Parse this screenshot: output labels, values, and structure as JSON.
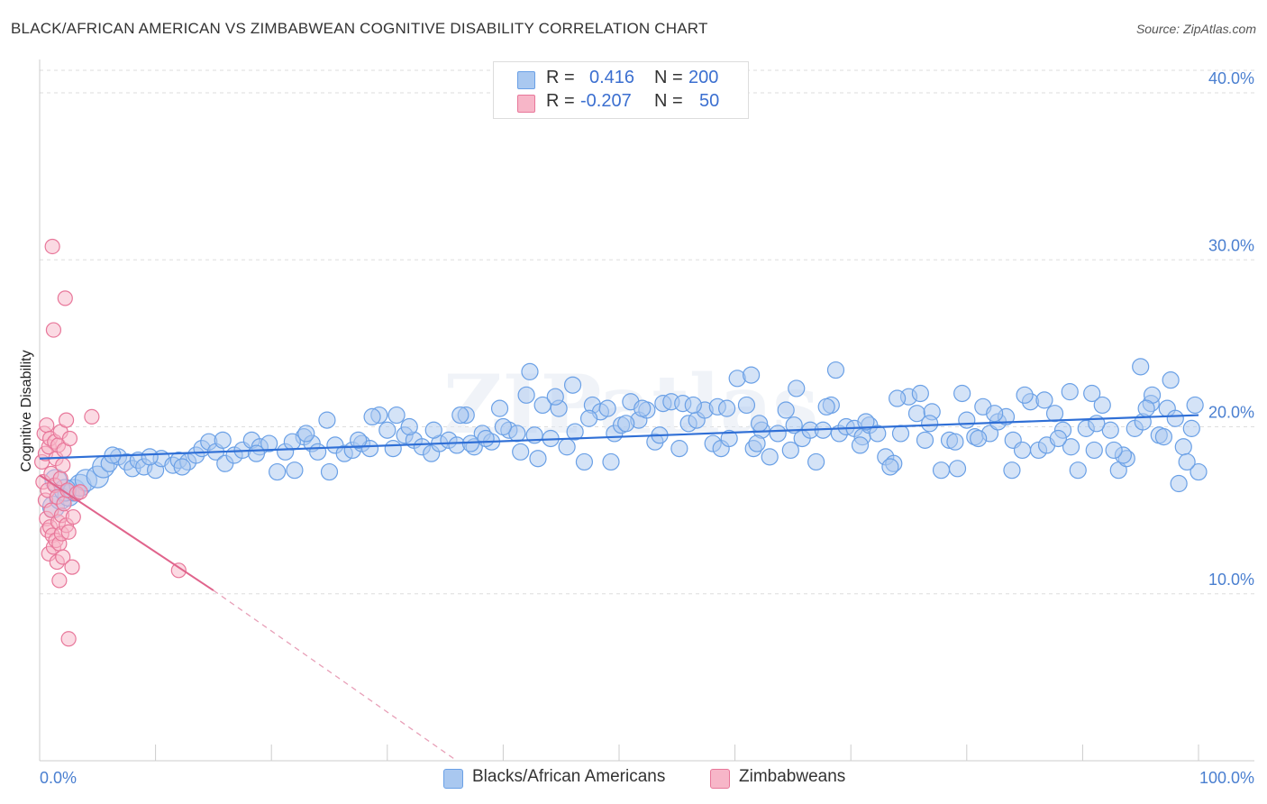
{
  "header": {
    "title": "BLACK/AFRICAN AMERICAN VS ZIMBABWEAN COGNITIVE DISABILITY CORRELATION CHART",
    "source": "Source: ZipAtlas.com"
  },
  "legend": {
    "rows": [
      {
        "r_label": "R =",
        "r_value": "0.416",
        "n_label": "N =",
        "n_value": "200",
        "color": "#a9c8f0"
      },
      {
        "r_label": "R =",
        "r_value": "-0.207",
        "n_label": "N =",
        "n_value": "50",
        "color": "#f7b6c8"
      }
    ]
  },
  "bottom_legend": [
    {
      "label": "Blacks/African Americans",
      "color": "#a9c8f0"
    },
    {
      "label": "Zimbabweans",
      "color": "#f7b6c8"
    }
  ],
  "chart_data": {
    "type": "scatter",
    "title": "BLACK/AFRICAN AMERICAN VS ZIMBABWEAN COGNITIVE DISABILITY CORRELATION CHART",
    "xlabel": "",
    "ylabel": "Cognitive Disability",
    "xlim": [
      0,
      100
    ],
    "ylim": [
      0,
      42
    ],
    "x_tick_labels": {
      "left": "0.0%",
      "right": "100.0%"
    },
    "y_ticks": [
      10,
      20,
      30,
      40
    ],
    "y_tick_labels": [
      "10.0%",
      "20.0%",
      "30.0%",
      "40.0%"
    ],
    "watermark": "ZIPatlas",
    "series": [
      {
        "name": "Blacks/African Americans",
        "color": "#6aa0e6",
        "fill": "#a9c8f0",
        "trend": {
          "x0": 0,
          "y0": 18.1,
          "x1": 100,
          "y1": 20.7
        },
        "points": [
          [
            1.2,
            15.2
          ],
          [
            1.8,
            15.7
          ],
          [
            2.5,
            15.9
          ],
          [
            3.0,
            16.2
          ],
          [
            3.5,
            16.5
          ],
          [
            4.0,
            16.8
          ],
          [
            5.0,
            17.0
          ],
          [
            5.5,
            17.6
          ],
          [
            6.0,
            17.8
          ],
          [
            6.8,
            18.2
          ],
          [
            7.5,
            17.9
          ],
          [
            8.0,
            17.5
          ],
          [
            8.5,
            18.0
          ],
          [
            9.0,
            17.6
          ],
          [
            10.0,
            17.4
          ],
          [
            10.5,
            18.1
          ],
          [
            11.5,
            17.7
          ],
          [
            12.0,
            18.0
          ],
          [
            12.8,
            17.9
          ],
          [
            13.5,
            18.3
          ],
          [
            14.0,
            18.7
          ],
          [
            14.6,
            19.1
          ],
          [
            15.2,
            18.5
          ],
          [
            16.0,
            17.8
          ],
          [
            16.8,
            18.3
          ],
          [
            17.5,
            18.6
          ],
          [
            18.3,
            19.2
          ],
          [
            19.0,
            18.8
          ],
          [
            19.8,
            19.0
          ],
          [
            20.5,
            17.3
          ],
          [
            21.2,
            18.5
          ],
          [
            22.0,
            17.4
          ],
          [
            22.8,
            19.4
          ],
          [
            23.5,
            19.0
          ],
          [
            24.0,
            18.5
          ],
          [
            24.8,
            20.4
          ],
          [
            25.5,
            18.9
          ],
          [
            26.3,
            18.4
          ],
          [
            27.0,
            18.6
          ],
          [
            27.8,
            19.0
          ],
          [
            28.5,
            18.7
          ],
          [
            29.3,
            20.7
          ],
          [
            30.0,
            19.8
          ],
          [
            30.8,
            20.7
          ],
          [
            31.5,
            19.5
          ],
          [
            32.3,
            19.2
          ],
          [
            33.0,
            18.8
          ],
          [
            33.8,
            18.4
          ],
          [
            34.5,
            19.0
          ],
          [
            35.3,
            19.2
          ],
          [
            36.0,
            18.9
          ],
          [
            36.8,
            20.7
          ],
          [
            37.5,
            18.8
          ],
          [
            38.2,
            19.6
          ],
          [
            39.0,
            19.1
          ],
          [
            39.7,
            21.1
          ],
          [
            40.5,
            19.8
          ],
          [
            41.2,
            19.6
          ],
          [
            42.0,
            21.9
          ],
          [
            42.7,
            19.5
          ],
          [
            43.4,
            21.3
          ],
          [
            44.1,
            19.3
          ],
          [
            44.8,
            21.1
          ],
          [
            45.5,
            18.8
          ],
          [
            46.2,
            19.7
          ],
          [
            47.0,
            17.9
          ],
          [
            47.7,
            21.3
          ],
          [
            48.4,
            20.9
          ],
          [
            49.0,
            21.1
          ],
          [
            49.6,
            19.6
          ],
          [
            50.2,
            20.1
          ],
          [
            51.0,
            21.5
          ],
          [
            51.7,
            20.4
          ],
          [
            52.4,
            21.0
          ],
          [
            53.1,
            19.1
          ],
          [
            53.8,
            21.4
          ],
          [
            54.5,
            21.5
          ],
          [
            55.2,
            18.7
          ],
          [
            56.0,
            20.2
          ],
          [
            56.7,
            20.4
          ],
          [
            57.4,
            21.0
          ],
          [
            58.1,
            19.0
          ],
          [
            58.8,
            18.7
          ],
          [
            59.5,
            19.3
          ],
          [
            60.2,
            22.9
          ],
          [
            61.0,
            21.3
          ],
          [
            61.6,
            18.7
          ],
          [
            62.3,
            19.8
          ],
          [
            63.0,
            18.2
          ],
          [
            63.7,
            19.6
          ],
          [
            64.4,
            21.0
          ],
          [
            65.1,
            20.1
          ],
          [
            65.8,
            19.3
          ],
          [
            66.5,
            19.8
          ],
          [
            67.0,
            17.9
          ],
          [
            67.6,
            19.8
          ],
          [
            68.3,
            21.3
          ],
          [
            69.0,
            19.6
          ],
          [
            69.6,
            20.0
          ],
          [
            70.3,
            19.9
          ],
          [
            71.0,
            19.4
          ],
          [
            71.6,
            20.1
          ],
          [
            72.3,
            19.6
          ],
          [
            73.0,
            18.2
          ],
          [
            73.7,
            17.8
          ],
          [
            74.3,
            19.6
          ],
          [
            75.0,
            21.8
          ],
          [
            75.7,
            20.8
          ],
          [
            76.4,
            19.2
          ],
          [
            77.0,
            20.9
          ],
          [
            77.8,
            17.4
          ],
          [
            78.5,
            19.2
          ],
          [
            79.2,
            17.5
          ],
          [
            80.0,
            20.4
          ],
          [
            80.7,
            19.4
          ],
          [
            81.4,
            21.2
          ],
          [
            82.0,
            19.6
          ],
          [
            82.7,
            20.3
          ],
          [
            83.4,
            20.6
          ],
          [
            84.0,
            19.2
          ],
          [
            84.8,
            18.6
          ],
          [
            85.5,
            21.5
          ],
          [
            86.2,
            18.6
          ],
          [
            86.9,
            18.9
          ],
          [
            87.6,
            20.8
          ],
          [
            88.3,
            19.8
          ],
          [
            89.0,
            18.8
          ],
          [
            89.6,
            17.4
          ],
          [
            90.3,
            19.9
          ],
          [
            91.0,
            18.6
          ],
          [
            91.7,
            21.3
          ],
          [
            92.4,
            19.8
          ],
          [
            93.1,
            17.4
          ],
          [
            93.8,
            18.1
          ],
          [
            94.5,
            19.9
          ],
          [
            95.2,
            20.3
          ],
          [
            95.9,
            21.4
          ],
          [
            96.6,
            19.5
          ],
          [
            97.3,
            21.1
          ],
          [
            98.0,
            20.5
          ],
          [
            98.7,
            18.8
          ],
          [
            99.4,
            19.9
          ],
          [
            100.0,
            17.3
          ],
          [
            1.4,
            16.8
          ],
          [
            2.2,
            16.2
          ],
          [
            6.3,
            18.3
          ],
          [
            9.5,
            18.2
          ],
          [
            12.3,
            17.6
          ],
          [
            15.8,
            19.2
          ],
          [
            18.7,
            18.4
          ],
          [
            21.8,
            19.1
          ],
          [
            25.0,
            17.3
          ],
          [
            27.5,
            19.2
          ],
          [
            30.5,
            18.7
          ],
          [
            34.0,
            19.8
          ],
          [
            37.2,
            19.0
          ],
          [
            40.0,
            20.0
          ],
          [
            43.0,
            18.1
          ],
          [
            46.0,
            22.5
          ],
          [
            49.3,
            17.9
          ],
          [
            52.0,
            21.1
          ],
          [
            55.5,
            21.4
          ],
          [
            58.5,
            21.2
          ],
          [
            61.9,
            19.0
          ],
          [
            64.8,
            18.6
          ],
          [
            67.9,
            21.2
          ],
          [
            70.8,
            18.9
          ],
          [
            73.4,
            17.6
          ],
          [
            76.0,
            22.0
          ],
          [
            79.0,
            19.1
          ],
          [
            81.0,
            19.3
          ],
          [
            83.9,
            17.4
          ],
          [
            86.7,
            21.6
          ],
          [
            88.9,
            22.1
          ],
          [
            91.2,
            20.2
          ],
          [
            93.5,
            18.3
          ],
          [
            95.0,
            23.6
          ],
          [
            96.0,
            21.9
          ],
          [
            97.6,
            22.8
          ],
          [
            99.0,
            17.9
          ],
          [
            38.5,
            19.3
          ],
          [
            41.5,
            18.5
          ],
          [
            44.5,
            21.8
          ],
          [
            47.4,
            20.5
          ],
          [
            50.6,
            20.2
          ],
          [
            53.5,
            19.5
          ],
          [
            56.4,
            21.3
          ],
          [
            59.3,
            21.1
          ],
          [
            62.1,
            20.2
          ],
          [
            65.3,
            22.3
          ],
          [
            68.7,
            23.4
          ],
          [
            71.3,
            20.3
          ],
          [
            74.0,
            21.7
          ],
          [
            76.8,
            20.2
          ],
          [
            79.6,
            22.0
          ],
          [
            82.4,
            20.8
          ],
          [
            85.0,
            21.9
          ],
          [
            87.9,
            19.3
          ],
          [
            90.8,
            22.0
          ],
          [
            92.7,
            18.6
          ],
          [
            95.5,
            21.1
          ],
          [
            97.0,
            19.4
          ],
          [
            98.3,
            16.6
          ],
          [
            99.7,
            21.3
          ],
          [
            61.4,
            23.1
          ],
          [
            36.3,
            20.7
          ],
          [
            42.3,
            23.3
          ],
          [
            28.7,
            20.6
          ],
          [
            23.0,
            19.6
          ],
          [
            31.9,
            20.0
          ]
        ]
      },
      {
        "name": "Zimbabweans",
        "color": "#e8779a",
        "fill": "#f7b6c8",
        "trend": {
          "x0": 0,
          "y0": 17.1,
          "x1": 15,
          "y1": 10.2,
          "dash_to_x": 36,
          "dash_to_y": 0.0
        },
        "points": [
          [
            0.2,
            17.9
          ],
          [
            0.3,
            16.7
          ],
          [
            0.4,
            19.6
          ],
          [
            0.5,
            18.4
          ],
          [
            0.5,
            15.6
          ],
          [
            0.6,
            14.5
          ],
          [
            0.6,
            20.1
          ],
          [
            0.7,
            13.8
          ],
          [
            0.7,
            16.2
          ],
          [
            0.8,
            12.4
          ],
          [
            0.8,
            18.8
          ],
          [
            0.9,
            19.3
          ],
          [
            0.9,
            14.0
          ],
          [
            1.0,
            17.2
          ],
          [
            1.0,
            15.0
          ],
          [
            1.1,
            30.8
          ],
          [
            1.1,
            13.5
          ],
          [
            1.2,
            25.8
          ],
          [
            1.2,
            12.8
          ],
          [
            1.3,
            16.5
          ],
          [
            1.3,
            19.1
          ],
          [
            1.4,
            18.1
          ],
          [
            1.4,
            13.2
          ],
          [
            1.5,
            11.9
          ],
          [
            1.5,
            15.8
          ],
          [
            1.6,
            14.3
          ],
          [
            1.6,
            18.9
          ],
          [
            1.7,
            13.0
          ],
          [
            1.7,
            10.8
          ],
          [
            1.8,
            16.9
          ],
          [
            1.8,
            19.7
          ],
          [
            1.9,
            14.7
          ],
          [
            1.9,
            13.6
          ],
          [
            2.0,
            17.7
          ],
          [
            2.0,
            12.2
          ],
          [
            2.1,
            15.4
          ],
          [
            2.1,
            18.6
          ],
          [
            2.2,
            27.7
          ],
          [
            2.3,
            14.1
          ],
          [
            2.3,
            20.4
          ],
          [
            2.4,
            16.2
          ],
          [
            2.5,
            7.3
          ],
          [
            2.5,
            13.7
          ],
          [
            2.6,
            19.3
          ],
          [
            2.8,
            11.6
          ],
          [
            2.9,
            14.6
          ],
          [
            3.2,
            16.0
          ],
          [
            3.5,
            16.1
          ],
          [
            4.5,
            20.6
          ],
          [
            12.0,
            11.4
          ]
        ]
      }
    ]
  }
}
